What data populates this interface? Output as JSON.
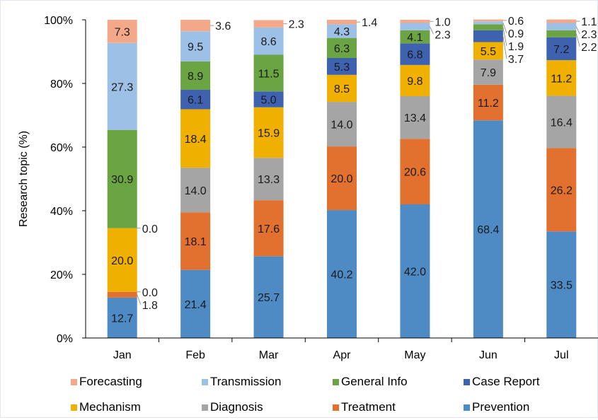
{
  "chart_data": {
    "type": "bar",
    "stacked": true,
    "percent": true,
    "title": "",
    "xlabel": "",
    "ylabel": "Research topic (%)",
    "ylim": [
      0,
      100
    ],
    "yticks": [
      "0%",
      "20%",
      "40%",
      "60%",
      "80%",
      "100%"
    ],
    "categories": [
      "Jan",
      "Feb",
      "Mar",
      "Apr",
      "May",
      "Jun",
      "Jul"
    ],
    "grid": false,
    "legend_position": "bottom",
    "series": [
      {
        "name": "Prevention",
        "color": "#4e8ac4",
        "values": [
          12.7,
          21.4,
          25.7,
          40.2,
          42.0,
          68.4,
          33.5
        ]
      },
      {
        "name": "Treatment",
        "color": "#e2702f",
        "values": [
          1.8,
          18.1,
          17.6,
          20.0,
          20.6,
          11.2,
          26.2
        ]
      },
      {
        "name": "Diagnosis",
        "color": "#a5a5a5",
        "values": [
          0.0,
          14.0,
          13.3,
          14.0,
          13.4,
          7.9,
          16.4
        ]
      },
      {
        "name": "Mechanism",
        "color": "#f0b000",
        "values": [
          20.0,
          18.4,
          15.9,
          8.5,
          9.8,
          5.5,
          11.2
        ]
      },
      {
        "name": "Case Report",
        "color": "#3f62b0",
        "values": [
          0.0,
          6.1,
          5.0,
          5.3,
          6.8,
          3.7,
          7.2
        ]
      },
      {
        "name": "General Info",
        "color": "#6aa443",
        "values": [
          30.9,
          8.9,
          11.5,
          6.3,
          4.1,
          1.9,
          2.2
        ]
      },
      {
        "name": "Transmission",
        "color": "#9dc0e6",
        "values": [
          27.3,
          9.5,
          8.6,
          4.3,
          2.3,
          0.9,
          2.3
        ]
      },
      {
        "name": "Forecasting",
        "color": "#f3a88a",
        "values": [
          7.3,
          3.6,
          2.3,
          1.4,
          1.0,
          0.6,
          1.1
        ]
      }
    ],
    "legend_order": [
      [
        "Forecasting",
        "Transmission",
        "General Info",
        "Case Report"
      ],
      [
        "Mechanism",
        "Diagnosis",
        "Treatment",
        "Prevention"
      ]
    ]
  }
}
